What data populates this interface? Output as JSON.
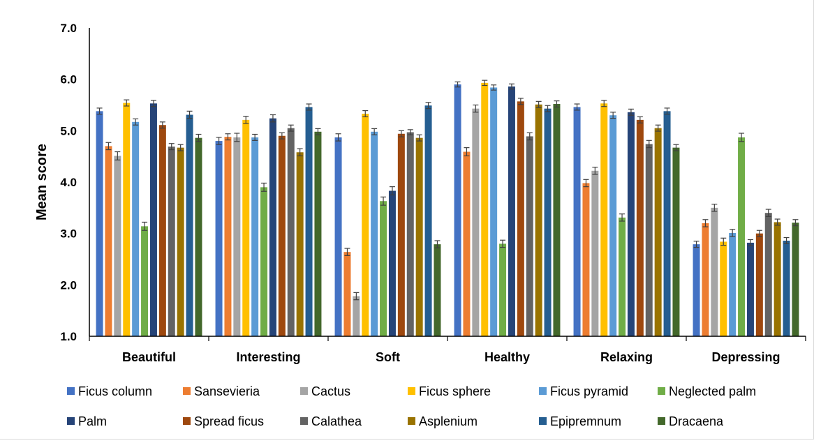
{
  "chart_data": {
    "type": "bar",
    "title": "",
    "xlabel": "",
    "ylabel": "Mean score",
    "ylim": [
      1.0,
      7.0
    ],
    "yticks": [
      "1.0",
      "2.0",
      "3.0",
      "4.0",
      "5.0",
      "6.0",
      "7.0"
    ],
    "grid": false,
    "legend_position": "bottom",
    "error_bars": true,
    "categories": [
      "Beautiful",
      "Interesting",
      "Soft",
      "Healthy",
      "Relaxing",
      "Depressing"
    ],
    "series": [
      {
        "name": "Ficus column",
        "color": "#4472c4",
        "values": [
          5.38,
          4.8,
          4.87,
          5.9,
          5.46,
          2.79
        ],
        "errors": [
          0.06,
          0.07,
          0.07,
          0.05,
          0.06,
          0.06
        ]
      },
      {
        "name": "Sansevieria",
        "color": "#ed7d31",
        "values": [
          4.7,
          4.88,
          2.64,
          4.59,
          3.98,
          3.2
        ],
        "errors": [
          0.07,
          0.06,
          0.07,
          0.08,
          0.07,
          0.07
        ]
      },
      {
        "name": "Cactus",
        "color": "#a5a5a5",
        "values": [
          4.51,
          4.87,
          1.78,
          5.43,
          4.22,
          3.5
        ],
        "errors": [
          0.08,
          0.08,
          0.07,
          0.07,
          0.07,
          0.07
        ]
      },
      {
        "name": "Ficus sphere",
        "color": "#ffc000",
        "values": [
          5.54,
          5.21,
          5.33,
          5.93,
          5.53,
          2.84
        ],
        "errors": [
          0.06,
          0.07,
          0.06,
          0.05,
          0.06,
          0.07
        ]
      },
      {
        "name": "Ficus pyramid",
        "color": "#5b9bd5",
        "values": [
          5.17,
          4.87,
          4.98,
          5.84,
          5.3,
          3.01
        ],
        "errors": [
          0.06,
          0.06,
          0.06,
          0.05,
          0.06,
          0.07
        ]
      },
      {
        "name": "Neglected palm",
        "color": "#70ad47",
        "values": [
          3.14,
          3.9,
          3.63,
          2.8,
          3.31,
          4.87
        ],
        "errors": [
          0.08,
          0.08,
          0.08,
          0.07,
          0.07,
          0.08
        ]
      },
      {
        "name": "Palm",
        "color": "#264478",
        "values": [
          5.53,
          5.24,
          3.83,
          5.86,
          5.36,
          2.82
        ],
        "errors": [
          0.06,
          0.07,
          0.08,
          0.05,
          0.06,
          0.06
        ]
      },
      {
        "name": "Spread ficus",
        "color": "#9e480e",
        "values": [
          5.11,
          4.9,
          4.94,
          5.57,
          5.21,
          3.0
        ],
        "errors": [
          0.06,
          0.06,
          0.06,
          0.06,
          0.06,
          0.06
        ]
      },
      {
        "name": "Calathea",
        "color": "#636363",
        "values": [
          4.69,
          5.05,
          4.97,
          4.89,
          4.74,
          3.4
        ],
        "errors": [
          0.06,
          0.06,
          0.05,
          0.07,
          0.07,
          0.07
        ]
      },
      {
        "name": "Asplenium",
        "color": "#997300",
        "values": [
          4.67,
          4.58,
          4.86,
          5.51,
          5.05,
          3.22
        ],
        "errors": [
          0.06,
          0.07,
          0.06,
          0.06,
          0.06,
          0.06
        ]
      },
      {
        "name": "Epipremnum",
        "color": "#255e91",
        "values": [
          5.31,
          5.46,
          5.49,
          5.43,
          5.38,
          2.86
        ],
        "errors": [
          0.07,
          0.06,
          0.06,
          0.06,
          0.06,
          0.06
        ]
      },
      {
        "name": "Dracaena",
        "color": "#43682b",
        "values": [
          4.86,
          4.98,
          2.79,
          5.52,
          4.67,
          3.21
        ],
        "errors": [
          0.07,
          0.06,
          0.07,
          0.06,
          0.06,
          0.06
        ]
      }
    ]
  }
}
